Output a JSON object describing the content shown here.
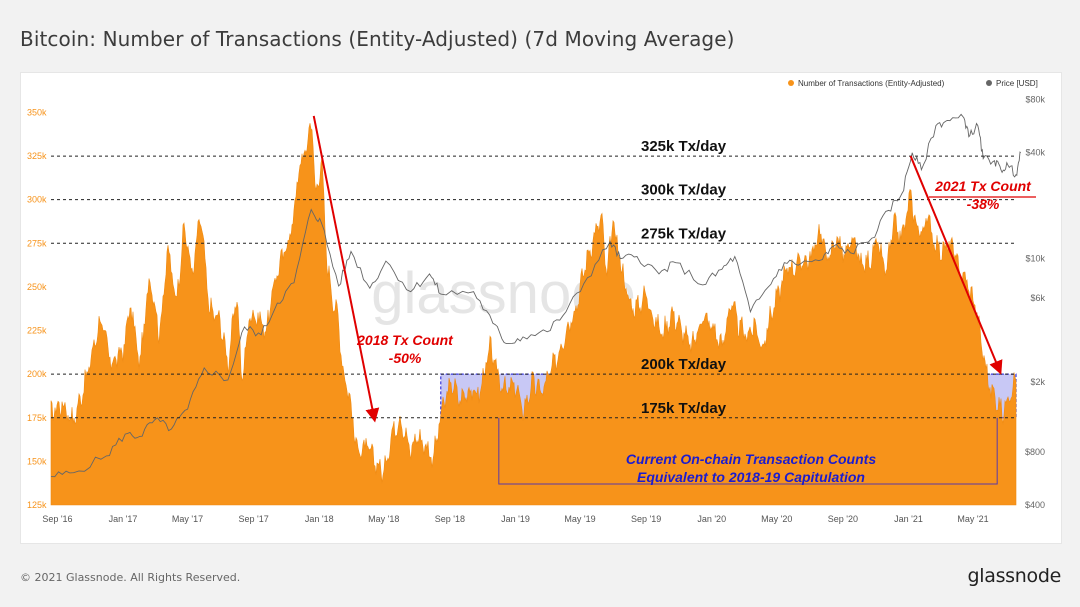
{
  "page": {
    "title": "Bitcoin: Number of Transactions (Entity-Adjusted) (7d Moving Average)",
    "copyright": "© 2021 Glassnode. All Rights Reserved.",
    "brand": "glassnode",
    "watermark": "glassnode"
  },
  "chart_data": {
    "type": "area",
    "legend": {
      "placement": "top-right",
      "items": [
        {
          "label": "Number of Transactions (Entity-Adjusted)",
          "color": "#f7931a"
        },
        {
          "label": "Price [USD]",
          "color": "#666666"
        }
      ]
    },
    "x_range": [
      "2016-08-20",
      "2021-07-20"
    ],
    "x_ticks": [
      "Sep '16",
      "Jan '17",
      "May '17",
      "Sep '17",
      "Jan '18",
      "May '18",
      "Sep '18",
      "Jan '19",
      "May '19",
      "Sep '19",
      "Jan '20",
      "May '20",
      "Sep '20",
      "Jan '21",
      "May '21"
    ],
    "x_tick_dates": [
      "2016-09-01",
      "2017-01-01",
      "2017-05-01",
      "2017-09-01",
      "2018-01-01",
      "2018-05-01",
      "2018-09-01",
      "2019-01-01",
      "2019-05-01",
      "2019-09-01",
      "2020-01-01",
      "2020-05-01",
      "2020-09-01",
      "2021-01-01",
      "2021-05-01"
    ],
    "y_left": {
      "ylim": [
        125000,
        360000
      ],
      "ticks": [
        125000,
        150000,
        175000,
        200000,
        225000,
        250000,
        275000,
        300000,
        325000,
        350000
      ],
      "tick_labels": [
        "125k",
        "150k",
        "175k",
        "200k",
        "225k",
        "250k",
        "275k",
        "300k",
        "325k",
        "350k"
      ],
      "color": "#f7931a"
    },
    "y_right": {
      "scale": "log",
      "ylim": [
        400,
        85000
      ],
      "ticks": [
        400,
        800,
        2000,
        6000,
        10000,
        40000,
        80000
      ],
      "tick_labels": [
        "$400",
        "$800",
        "$2k",
        "$6k",
        "$10k",
        "$40k",
        "$80k"
      ]
    },
    "series": [
      {
        "name": "Number of Transactions (Entity-Adjusted)",
        "color": "#f7931a",
        "kind": "area",
        "points": [
          [
            "2016-08-20",
            178000
          ],
          [
            "2016-09-10",
            183000
          ],
          [
            "2016-10-01",
            173000
          ],
          [
            "2016-10-25",
            198000
          ],
          [
            "2016-11-20",
            232000
          ],
          [
            "2016-12-10",
            206000
          ],
          [
            "2017-01-01",
            213000
          ],
          [
            "2017-01-15",
            240000
          ],
          [
            "2017-02-01",
            205000
          ],
          [
            "2017-02-20",
            257000
          ],
          [
            "2017-03-10",
            222000
          ],
          [
            "2017-03-25",
            272000
          ],
          [
            "2017-04-10",
            242000
          ],
          [
            "2017-04-25",
            285000
          ],
          [
            "2017-05-10",
            256000
          ],
          [
            "2017-05-25",
            292000
          ],
          [
            "2017-06-10",
            238000
          ],
          [
            "2017-07-01",
            230000
          ],
          [
            "2017-07-15",
            206000
          ],
          [
            "2017-08-01",
            246000
          ],
          [
            "2017-08-10",
            195000
          ],
          [
            "2017-08-25",
            235000
          ],
          [
            "2017-09-10",
            232000
          ],
          [
            "2017-09-25",
            225000
          ],
          [
            "2017-10-10",
            254000
          ],
          [
            "2017-10-25",
            267000
          ],
          [
            "2017-11-10",
            282000
          ],
          [
            "2017-11-25",
            318000
          ],
          [
            "2017-12-10",
            332000
          ],
          [
            "2017-12-18",
            348000
          ],
          [
            "2017-12-25",
            300000
          ],
          [
            "2018-01-05",
            325000
          ],
          [
            "2018-01-15",
            265000
          ],
          [
            "2018-01-25",
            245000
          ],
          [
            "2018-02-05",
            232000
          ],
          [
            "2018-02-15",
            200000
          ],
          [
            "2018-02-25",
            190000
          ],
          [
            "2018-03-10",
            160000
          ],
          [
            "2018-03-20",
            156000
          ],
          [
            "2018-04-01",
            158000
          ],
          [
            "2018-04-15",
            150000
          ],
          [
            "2018-05-01",
            143000
          ],
          [
            "2018-05-15",
            165000
          ],
          [
            "2018-06-01",
            175000
          ],
          [
            "2018-06-20",
            155000
          ],
          [
            "2018-07-01",
            165000
          ],
          [
            "2018-07-15",
            160000
          ],
          [
            "2018-08-01",
            152000
          ],
          [
            "2018-08-20",
            183000
          ],
          [
            "2018-09-05",
            195000
          ],
          [
            "2018-09-20",
            185000
          ],
          [
            "2018-10-05",
            191000
          ],
          [
            "2018-10-25",
            188000
          ],
          [
            "2018-11-15",
            215000
          ],
          [
            "2018-12-01",
            198000
          ],
          [
            "2018-12-15",
            190000
          ],
          [
            "2019-01-01",
            194000
          ],
          [
            "2019-01-15",
            178000
          ],
          [
            "2019-02-01",
            195000
          ],
          [
            "2019-02-20",
            190000
          ],
          [
            "2019-03-05",
            200000
          ],
          [
            "2019-03-20",
            210000
          ],
          [
            "2019-04-05",
            225000
          ],
          [
            "2019-04-25",
            240000
          ],
          [
            "2019-05-10",
            262000
          ],
          [
            "2019-05-25",
            277000
          ],
          [
            "2019-06-10",
            290000
          ],
          [
            "2019-06-20",
            255000
          ],
          [
            "2019-07-01",
            288000
          ],
          [
            "2019-07-15",
            265000
          ],
          [
            "2019-08-01",
            240000
          ],
          [
            "2019-08-15",
            238000
          ],
          [
            "2019-09-01",
            246000
          ],
          [
            "2019-09-15",
            232000
          ],
          [
            "2019-10-01",
            223000
          ],
          [
            "2019-10-20",
            235000
          ],
          [
            "2019-11-05",
            226000
          ],
          [
            "2019-11-25",
            215000
          ],
          [
            "2019-12-15",
            233000
          ],
          [
            "2020-01-05",
            226000
          ],
          [
            "2020-01-20",
            215000
          ],
          [
            "2020-02-05",
            241000
          ],
          [
            "2020-02-20",
            228000
          ],
          [
            "2020-03-05",
            222000
          ],
          [
            "2020-03-20",
            228000
          ],
          [
            "2020-04-05",
            215000
          ],
          [
            "2020-04-20",
            234000
          ],
          [
            "2020-05-05",
            247000
          ],
          [
            "2020-05-20",
            261000
          ],
          [
            "2020-06-05",
            262000
          ],
          [
            "2020-06-20",
            265000
          ],
          [
            "2020-07-05",
            267000
          ],
          [
            "2020-07-20",
            283000
          ],
          [
            "2020-08-05",
            265000
          ],
          [
            "2020-08-20",
            279000
          ],
          [
            "2020-09-05",
            267000
          ],
          [
            "2020-09-20",
            277000
          ],
          [
            "2020-10-05",
            262000
          ],
          [
            "2020-10-20",
            265000
          ],
          [
            "2020-11-05",
            275000
          ],
          [
            "2020-11-20",
            258000
          ],
          [
            "2020-12-05",
            286000
          ],
          [
            "2020-12-20",
            278000
          ],
          [
            "2021-01-05",
            303000
          ],
          [
            "2021-01-12",
            289000
          ],
          [
            "2021-01-25",
            280000
          ],
          [
            "2021-02-05",
            290000
          ],
          [
            "2021-02-20",
            275000
          ],
          [
            "2021-03-05",
            270000
          ],
          [
            "2021-03-20",
            275000
          ],
          [
            "2021-04-05",
            261000
          ],
          [
            "2021-04-20",
            252000
          ],
          [
            "2021-05-05",
            240000
          ],
          [
            "2021-05-20",
            212000
          ],
          [
            "2021-06-01",
            192000
          ],
          [
            "2021-06-15",
            185000
          ],
          [
            "2021-06-25",
            177000
          ],
          [
            "2021-07-05",
            188000
          ],
          [
            "2021-07-20",
            197000
          ]
        ]
      },
      {
        "name": "Price [USD]",
        "color": "#666666",
        "kind": "line",
        "points": [
          [
            "2016-08-20",
            580
          ],
          [
            "2016-10-01",
            610
          ],
          [
            "2016-12-01",
            760
          ],
          [
            "2017-01-05",
            1010
          ],
          [
            "2017-02-01",
            980
          ],
          [
            "2017-03-01",
            1220
          ],
          [
            "2017-04-01",
            1080
          ],
          [
            "2017-05-01",
            1400
          ],
          [
            "2017-06-01",
            2400
          ],
          [
            "2017-07-15",
            2050
          ],
          [
            "2017-08-15",
            4100
          ],
          [
            "2017-09-15",
            3700
          ],
          [
            "2017-10-15",
            5600
          ],
          [
            "2017-11-15",
            7300
          ],
          [
            "2017-12-17",
            19000
          ],
          [
            "2018-01-05",
            16000
          ],
          [
            "2018-02-06",
            7000
          ],
          [
            "2018-03-01",
            11000
          ],
          [
            "2018-04-05",
            6800
          ],
          [
            "2018-05-05",
            9700
          ],
          [
            "2018-06-20",
            6500
          ],
          [
            "2018-07-25",
            8200
          ],
          [
            "2018-08-15",
            6300
          ],
          [
            "2018-10-15",
            6500
          ],
          [
            "2018-11-20",
            4300
          ],
          [
            "2018-12-15",
            3300
          ],
          [
            "2019-01-15",
            3600
          ],
          [
            "2019-03-01",
            3850
          ],
          [
            "2019-04-05",
            5000
          ],
          [
            "2019-05-15",
            7800
          ],
          [
            "2019-06-26",
            12500
          ],
          [
            "2019-07-15",
            10000
          ],
          [
            "2019-08-15",
            10300
          ],
          [
            "2019-09-25",
            8200
          ],
          [
            "2019-10-26",
            9500
          ],
          [
            "2019-12-15",
            7100
          ],
          [
            "2020-01-20",
            8700
          ],
          [
            "2020-02-13",
            10300
          ],
          [
            "2020-03-13",
            5000
          ],
          [
            "2020-04-15",
            6900
          ],
          [
            "2020-05-15",
            9500
          ],
          [
            "2020-06-15",
            9400
          ],
          [
            "2020-07-25",
            9900
          ],
          [
            "2020-08-15",
            11800
          ],
          [
            "2020-09-15",
            10800
          ],
          [
            "2020-10-25",
            13100
          ],
          [
            "2020-11-25",
            18800
          ],
          [
            "2020-12-20",
            23500
          ],
          [
            "2021-01-08",
            40000
          ],
          [
            "2021-01-25",
            32000
          ],
          [
            "2021-02-21",
            57000
          ],
          [
            "2021-03-14",
            61000
          ],
          [
            "2021-04-14",
            63000
          ],
          [
            "2021-04-25",
            50000
          ],
          [
            "2021-05-10",
            57000
          ],
          [
            "2021-05-20",
            37000
          ],
          [
            "2021-06-10",
            36000
          ],
          [
            "2021-06-22",
            32000
          ],
          [
            "2021-07-05",
            34000
          ],
          [
            "2021-07-20",
            30000
          ],
          [
            "2021-07-29",
            40000
          ]
        ]
      }
    ],
    "threshold_lines": [
      {
        "label": "325k Tx/day",
        "value": 325000
      },
      {
        "label": "300k Tx/day",
        "value": 300000
      },
      {
        "label": "275k Tx/day",
        "value": 275000
      },
      {
        "label": "200k Tx/day",
        "value": 200000
      },
      {
        "label": "175k Tx/day",
        "value": 175000
      }
    ],
    "annotations": {
      "drawdown_2018": {
        "line1": "2018 Tx Count",
        "line2": "-50%",
        "from": [
          "2017-12-18",
          348000
        ],
        "to": [
          "2018-04-25",
          175000
        ],
        "color": "#e00000"
      },
      "drawdown_2021": {
        "line1": "2021 Tx Count",
        "line2": "-38%",
        "from": [
          "2021-01-05",
          325000
        ],
        "to": [
          "2021-06-15",
          200000
        ],
        "color": "#e00000"
      },
      "box_2018": {
        "x": [
          "2018-08-15",
          "2019-03-15"
        ],
        "y": [
          175000,
          200000
        ],
        "color": "#3a3adc"
      },
      "box_2021": {
        "x": [
          "2021-05-25",
          "2021-07-20"
        ],
        "y": [
          175000,
          200000
        ],
        "color": "#3a3adc"
      },
      "capitulation_note": {
        "line1": "Current On-chain Transaction Counts",
        "line2": "Equivalent to 2018-19 Capitulation",
        "color": "#1c1ccf",
        "bracket_x": [
          "2018-12-01",
          "2021-06-15"
        ]
      }
    }
  }
}
